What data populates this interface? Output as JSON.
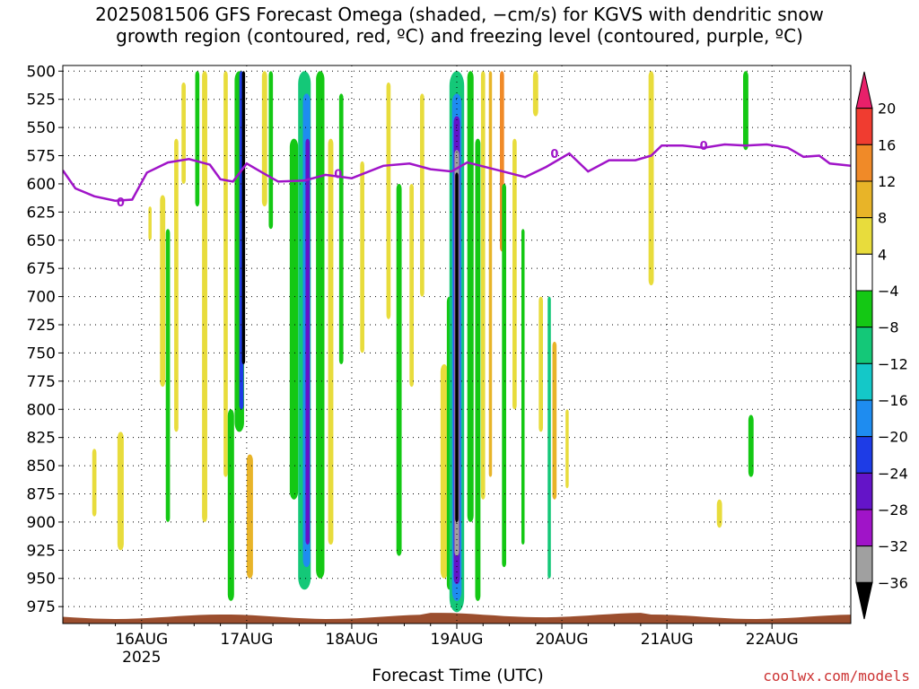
{
  "title_line1": "2025081506 GFS Forecast Omega (shaded, −cm/s) for KGVS with dendritic snow",
  "title_line2": "growth region (contoured, red, ºC) and freezing level (contoured, purple, ºC)",
  "watermark": "coolwx.com/models",
  "chart_data": {
    "type": "heatmap",
    "xlabel": "Forecast Time (UTC)",
    "x_ticks": [
      {
        "t": 0.75,
        "label": "16AUG",
        "sub": "2025"
      },
      {
        "t": 1.75,
        "label": "17AUG"
      },
      {
        "t": 2.75,
        "label": "18AUG"
      },
      {
        "t": 3.75,
        "label": "19AUG"
      },
      {
        "t": 4.75,
        "label": "20AUG"
      },
      {
        "t": 5.75,
        "label": "21AUG"
      },
      {
        "t": 6.75,
        "label": "22AUG"
      }
    ],
    "x_range_days": [
      0,
      7.5
    ],
    "y_ticks": [
      500,
      525,
      550,
      575,
      600,
      625,
      650,
      675,
      700,
      725,
      750,
      775,
      800,
      825,
      850,
      875,
      900,
      925,
      950,
      975
    ],
    "y_range": [
      495,
      990
    ],
    "y_axis_inverted": true,
    "grid": true,
    "colorbar": {
      "labels": [
        "20",
        "16",
        "12",
        "8",
        "4",
        "−4",
        "−8",
        "−12",
        "−16",
        "−20",
        "−24",
        "−28",
        "−32",
        "−36"
      ],
      "colors": [
        "#e8206a",
        "#f03c30",
        "#f08a28",
        "#e8b428",
        "#e8dc3c",
        "#ffffff",
        "#14c814",
        "#14c878",
        "#14c8c8",
        "#1e8cf0",
        "#1e3ce6",
        "#6414c8",
        "#a014c8",
        "#a0a0a0",
        "#000000"
      ]
    },
    "omega_bands": [
      {
        "t": 0.3,
        "p0": 835,
        "p1": 895,
        "w": 0.04,
        "color": "#e8dc3c"
      },
      {
        "t": 0.55,
        "p0": 820,
        "p1": 925,
        "w": 0.06,
        "color": "#e8dc3c"
      },
      {
        "t": 0.83,
        "p0": 620,
        "p1": 650,
        "w": 0.03,
        "color": "#e8dc3c"
      },
      {
        "t": 0.95,
        "p0": 610,
        "p1": 780,
        "w": 0.05,
        "color": "#e8dc3c"
      },
      {
        "t": 1.0,
        "p0": 640,
        "p1": 900,
        "w": 0.04,
        "color": "#14c814"
      },
      {
        "t": 1.08,
        "p0": 560,
        "p1": 820,
        "w": 0.04,
        "color": "#e8dc3c"
      },
      {
        "t": 1.15,
        "p0": 510,
        "p1": 600,
        "w": 0.04,
        "color": "#e8dc3c"
      },
      {
        "t": 1.28,
        "p0": 500,
        "p1": 620,
        "w": 0.04,
        "color": "#14c814"
      },
      {
        "t": 1.35,
        "p0": 500,
        "p1": 900,
        "w": 0.05,
        "color": "#e8dc3c"
      },
      {
        "t": 1.55,
        "p0": 500,
        "p1": 860,
        "w": 0.04,
        "color": "#e8dc3c"
      },
      {
        "t": 1.6,
        "p0": 800,
        "p1": 970,
        "w": 0.06,
        "color": "#14c814"
      },
      {
        "t": 1.68,
        "p0": 500,
        "p1": 820,
        "w": 0.09,
        "color": "#14c814"
      },
      {
        "t": 1.7,
        "p0": 500,
        "p1": 800,
        "w": 0.04,
        "color": "#1e3ce6"
      },
      {
        "t": 1.72,
        "p0": 500,
        "p1": 760,
        "w": 0.03,
        "color": "#000000"
      },
      {
        "t": 1.78,
        "p0": 840,
        "p1": 950,
        "w": 0.06,
        "color": "#e8b428"
      },
      {
        "t": 1.92,
        "p0": 500,
        "p1": 620,
        "w": 0.05,
        "color": "#e8dc3c"
      },
      {
        "t": 1.98,
        "p0": 500,
        "p1": 640,
        "w": 0.04,
        "color": "#14c814"
      },
      {
        "t": 2.2,
        "p0": 560,
        "p1": 880,
        "w": 0.08,
        "color": "#14c814"
      },
      {
        "t": 2.3,
        "p0": 500,
        "p1": 960,
        "w": 0.12,
        "color": "#14c878"
      },
      {
        "t": 2.32,
        "p0": 520,
        "p1": 940,
        "w": 0.07,
        "color": "#1e8cf0"
      },
      {
        "t": 2.33,
        "p0": 560,
        "p1": 920,
        "w": 0.04,
        "color": "#6414c8"
      },
      {
        "t": 2.45,
        "p0": 500,
        "p1": 950,
        "w": 0.08,
        "color": "#14c814"
      },
      {
        "t": 2.55,
        "p0": 560,
        "p1": 920,
        "w": 0.05,
        "color": "#e8dc3c"
      },
      {
        "t": 2.65,
        "p0": 520,
        "p1": 760,
        "w": 0.04,
        "color": "#14c814"
      },
      {
        "t": 2.85,
        "p0": 580,
        "p1": 750,
        "w": 0.04,
        "color": "#e8dc3c"
      },
      {
        "t": 3.1,
        "p0": 510,
        "p1": 720,
        "w": 0.04,
        "color": "#e8dc3c"
      },
      {
        "t": 3.2,
        "p0": 600,
        "p1": 930,
        "w": 0.05,
        "color": "#14c814"
      },
      {
        "t": 3.32,
        "p0": 600,
        "p1": 780,
        "w": 0.04,
        "color": "#e8dc3c"
      },
      {
        "t": 3.42,
        "p0": 520,
        "p1": 700,
        "w": 0.04,
        "color": "#e8dc3c"
      },
      {
        "t": 3.63,
        "p0": 760,
        "p1": 950,
        "w": 0.07,
        "color": "#e8dc3c"
      },
      {
        "t": 3.68,
        "p0": 700,
        "p1": 960,
        "w": 0.05,
        "color": "#14c814"
      },
      {
        "t": 3.75,
        "p0": 500,
        "p1": 980,
        "w": 0.14,
        "color": "#14c878"
      },
      {
        "t": 3.75,
        "p0": 520,
        "p1": 970,
        "w": 0.09,
        "color": "#1e8cf0"
      },
      {
        "t": 3.75,
        "p0": 540,
        "p1": 955,
        "w": 0.06,
        "color": "#6414c8"
      },
      {
        "t": 3.75,
        "p0": 570,
        "p1": 930,
        "w": 0.045,
        "color": "#a0a0a0"
      },
      {
        "t": 3.75,
        "p0": 590,
        "p1": 900,
        "w": 0.03,
        "color": "#000000"
      },
      {
        "t": 3.88,
        "p0": 500,
        "p1": 900,
        "w": 0.06,
        "color": "#14c814"
      },
      {
        "t": 3.95,
        "p0": 560,
        "p1": 970,
        "w": 0.05,
        "color": "#14c814"
      },
      {
        "t": 4.0,
        "p0": 500,
        "p1": 880,
        "w": 0.04,
        "color": "#e8dc3c"
      },
      {
        "t": 4.07,
        "p0": 500,
        "p1": 860,
        "w": 0.03,
        "color": "#e8b428"
      },
      {
        "t": 4.18,
        "p0": 500,
        "p1": 660,
        "w": 0.04,
        "color": "#f08a28"
      },
      {
        "t": 4.2,
        "p0": 600,
        "p1": 940,
        "w": 0.04,
        "color": "#14c814"
      },
      {
        "t": 4.3,
        "p0": 560,
        "p1": 800,
        "w": 0.04,
        "color": "#e8dc3c"
      },
      {
        "t": 4.38,
        "p0": 640,
        "p1": 920,
        "w": 0.03,
        "color": "#14c814"
      },
      {
        "t": 4.5,
        "p0": 500,
        "p1": 540,
        "w": 0.05,
        "color": "#e8dc3c"
      },
      {
        "t": 4.55,
        "p0": 700,
        "p1": 820,
        "w": 0.04,
        "color": "#e8dc3c"
      },
      {
        "t": 4.63,
        "p0": 700,
        "p1": 950,
        "w": 0.03,
        "color": "#14c878"
      },
      {
        "t": 4.68,
        "p0": 740,
        "p1": 880,
        "w": 0.04,
        "color": "#e8b428"
      },
      {
        "t": 4.8,
        "p0": 800,
        "p1": 870,
        "w": 0.03,
        "color": "#e8dc3c"
      },
      {
        "t": 5.6,
        "p0": 500,
        "p1": 690,
        "w": 0.05,
        "color": "#e8dc3c"
      },
      {
        "t": 6.5,
        "p0": 500,
        "p1": 570,
        "w": 0.05,
        "color": "#14c814"
      },
      {
        "t": 6.55,
        "p0": 805,
        "p1": 860,
        "w": 0.05,
        "color": "#14c814"
      },
      {
        "t": 6.25,
        "p0": 880,
        "p1": 905,
        "w": 0.05,
        "color": "#e8dc3c"
      }
    ],
    "freezing_level": {
      "label": "0",
      "points": [
        [
          0,
          588
        ],
        [
          0.12,
          604
        ],
        [
          0.3,
          611
        ],
        [
          0.5,
          615
        ],
        [
          0.66,
          614
        ],
        [
          0.8,
          590
        ],
        [
          1.0,
          581
        ],
        [
          1.2,
          578
        ],
        [
          1.4,
          583
        ],
        [
          1.5,
          596
        ],
        [
          1.62,
          598
        ],
        [
          1.75,
          582
        ],
        [
          1.9,
          590
        ],
        [
          2.05,
          598
        ],
        [
          2.3,
          597
        ],
        [
          2.5,
          592
        ],
        [
          2.75,
          595
        ],
        [
          3.05,
          584
        ],
        [
          3.3,
          582
        ],
        [
          3.5,
          587
        ],
        [
          3.7,
          589
        ],
        [
          3.85,
          581
        ],
        [
          4.15,
          588
        ],
        [
          4.4,
          594
        ],
        [
          4.6,
          585
        ],
        [
          4.82,
          573
        ],
        [
          5.0,
          589
        ],
        [
          5.2,
          579
        ],
        [
          5.45,
          579
        ],
        [
          5.6,
          575
        ],
        [
          5.7,
          566
        ],
        [
          5.9,
          566
        ],
        [
          6.1,
          568
        ],
        [
          6.3,
          565
        ],
        [
          6.5,
          566
        ],
        [
          6.7,
          565
        ],
        [
          6.9,
          568
        ],
        [
          7.05,
          576
        ],
        [
          7.2,
          575
        ],
        [
          7.3,
          582
        ],
        [
          7.5,
          584
        ]
      ],
      "label_positions": [
        [
          0.55,
          616
        ],
        [
          2.62,
          591
        ],
        [
          4.68,
          573
        ],
        [
          6.1,
          566
        ]
      ]
    },
    "terrain_color": "#9b4e2e"
  }
}
